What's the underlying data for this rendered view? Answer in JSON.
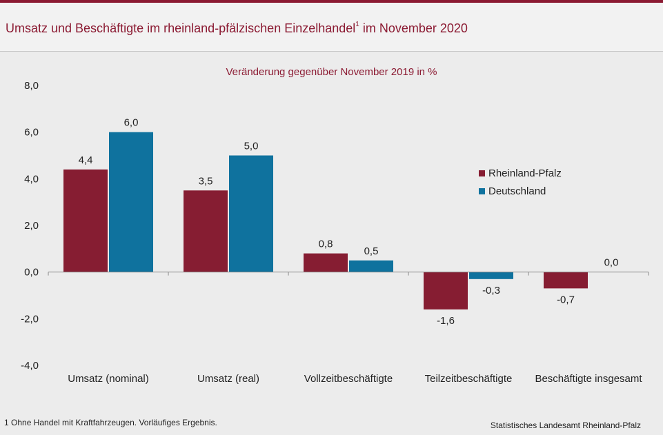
{
  "title_main": "Umsatz und Beschäftigte im rheinland-pfälzischen Einzelhandel",
  "title_sup": "1",
  "title_tail": " im November 2020",
  "footnote": "1 Ohne Handel mit Kraftfahrzeugen. Vorläufiges Ergebnis.",
  "source": "Statistisches Landesamt Rheinland-Pfalz",
  "chart_data": {
    "type": "bar",
    "title": "Umsatz und Beschäftigte im rheinland-pfälzischen Einzelhandel1 im November 2020",
    "subtitle": "Veränderung gegenüber November 2019 in %",
    "categories": [
      "Umsatz (nominal)",
      "Umsatz (real)",
      "Vollzeitbeschäftigte",
      "Teilzeitbeschäftigte",
      "Beschäftigte insgesamt"
    ],
    "series": [
      {
        "name": "Rheinland-Pfalz",
        "color": "#861d32",
        "values": [
          4.4,
          3.5,
          0.8,
          -1.6,
          -0.7
        ],
        "labels": [
          "4,4",
          "3,5",
          "0,8",
          "-1,6",
          "-0,7"
        ]
      },
      {
        "name": "Deutschland",
        "color": "#0f729e",
        "values": [
          6.0,
          5.0,
          0.5,
          -0.3,
          0.0
        ],
        "labels": [
          "6,0",
          "5,0",
          "0,5",
          "-0,3",
          "0,0"
        ]
      }
    ],
    "ylim": [
      -4,
      8
    ],
    "yticks": [
      -4,
      -2,
      0,
      2,
      4,
      6,
      8
    ],
    "ytick_labels": [
      "-4,0",
      "-2,0",
      "0,0",
      "2,0",
      "4,0",
      "6,0",
      "8,0"
    ],
    "xlabel": "",
    "ylabel": "",
    "grid": false,
    "legend_position": "right"
  }
}
